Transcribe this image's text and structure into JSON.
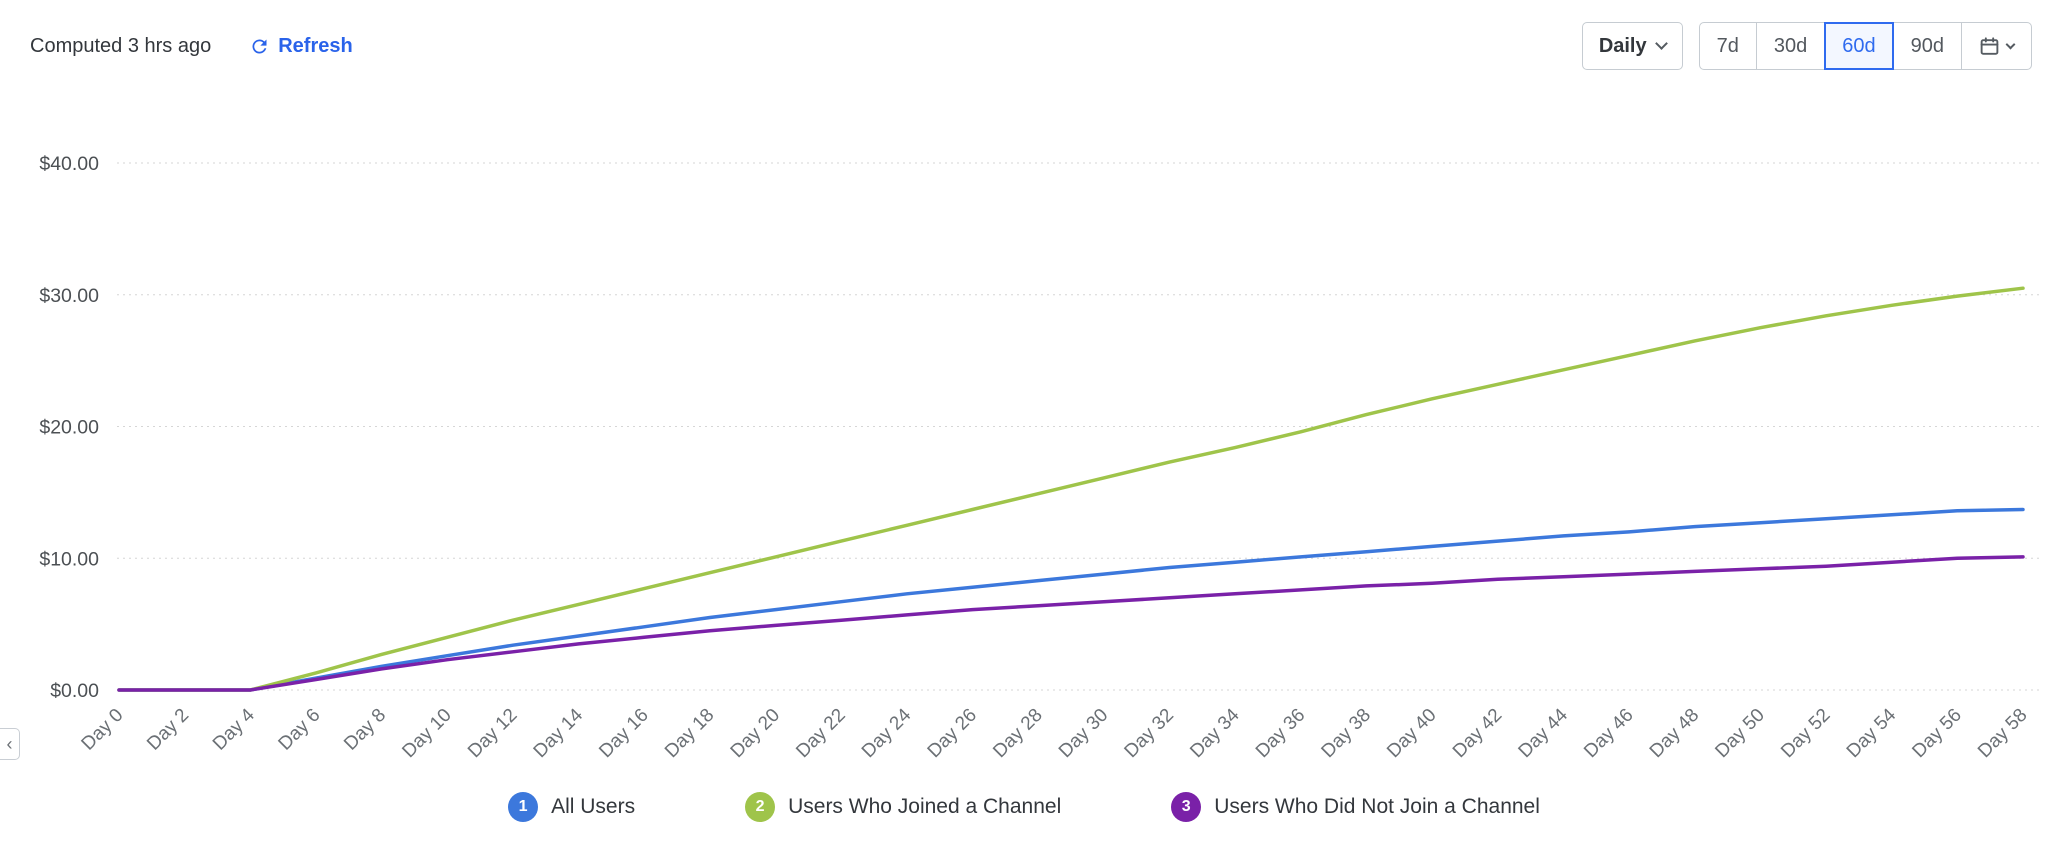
{
  "header": {
    "computed_text": "Computed 3 hrs ago",
    "refresh_label": "Refresh"
  },
  "controls": {
    "interval_label": "Daily",
    "ranges": [
      {
        "label": "7d",
        "selected": false
      },
      {
        "label": "30d",
        "selected": false
      },
      {
        "label": "60d",
        "selected": true
      },
      {
        "label": "90d",
        "selected": false
      }
    ]
  },
  "icons": {
    "refresh": "circular-arrow",
    "chevron_down": "css-chevron",
    "calendar": "calendar-grid",
    "collapse_left": "‹"
  },
  "colors": {
    "accent_blue": "#2a63ea",
    "selected_range_blue": "#2f6bef",
    "series_blue": "#3c78dc",
    "series_green": "#9fc44a",
    "series_purple": "#7a21a8",
    "grid": "#d6d6d6",
    "y_axis_text": "#4c5054",
    "x_axis_text": "#6b7075"
  },
  "chart_data": {
    "type": "line",
    "title": "",
    "xlabel": "",
    "ylabel": "",
    "ylim": [
      0,
      40
    ],
    "grid": "dotted-horizontal",
    "legend_position": "bottom",
    "y_ticks": [
      {
        "label": "$0.00",
        "value": 0
      },
      {
        "label": "$10.00",
        "value": 10
      },
      {
        "label": "$20.00",
        "value": 20
      },
      {
        "label": "$30.00",
        "value": 30
      },
      {
        "label": "$40.00",
        "value": 40
      }
    ],
    "x_days": [
      0,
      2,
      4,
      6,
      8,
      10,
      12,
      14,
      16,
      18,
      20,
      22,
      24,
      26,
      28,
      30,
      32,
      34,
      36,
      38,
      40,
      42,
      44,
      46,
      48,
      50,
      52,
      54,
      56,
      58
    ],
    "x_tick_labels": [
      "Day 0",
      "Day 2",
      "Day 4",
      "Day 6",
      "Day 8",
      "Day 10",
      "Day 12",
      "Day 14",
      "Day 16",
      "Day 18",
      "Day 20",
      "Day 22",
      "Day 24",
      "Day 26",
      "Day 28",
      "Day 30",
      "Day 32",
      "Day 34",
      "Day 36",
      "Day 38",
      "Day 40",
      "Day 42",
      "Day 44",
      "Day 46",
      "Day 48",
      "Day 50",
      "Day 52",
      "Day 54",
      "Day 56",
      "Day 58"
    ],
    "series": [
      {
        "badge": "1",
        "name": "All Users",
        "color": "#3c78dc",
        "values": [
          0,
          0,
          0,
          0.9,
          1.8,
          2.6,
          3.4,
          4.1,
          4.8,
          5.5,
          6.1,
          6.7,
          7.3,
          7.8,
          8.3,
          8.8,
          9.3,
          9.7,
          10.1,
          10.5,
          10.9,
          11.3,
          11.7,
          12.0,
          12.4,
          12.7,
          13.0,
          13.3,
          13.6,
          13.7
        ]
      },
      {
        "badge": "2",
        "name": "Users Who Joined a Channel",
        "color": "#9fc44a",
        "values": [
          0,
          0,
          0,
          1.3,
          2.7,
          4.0,
          5.3,
          6.5,
          7.7,
          8.9,
          10.1,
          11.3,
          12.5,
          13.7,
          14.9,
          16.1,
          17.3,
          18.4,
          19.6,
          20.9,
          22.1,
          23.2,
          24.3,
          25.4,
          26.5,
          27.5,
          28.4,
          29.2,
          29.9,
          30.5
        ]
      },
      {
        "badge": "3",
        "name": "Users Who Did Not Join a Channel",
        "color": "#7a21a8",
        "values": [
          0,
          0,
          0,
          0.8,
          1.6,
          2.3,
          2.9,
          3.5,
          4.0,
          4.5,
          4.9,
          5.3,
          5.7,
          6.1,
          6.4,
          6.7,
          7.0,
          7.3,
          7.6,
          7.9,
          8.1,
          8.4,
          8.6,
          8.8,
          9.0,
          9.2,
          9.4,
          9.7,
          10.0,
          10.1
        ]
      }
    ]
  },
  "side_panel": {
    "collapse_arrow": "‹"
  }
}
